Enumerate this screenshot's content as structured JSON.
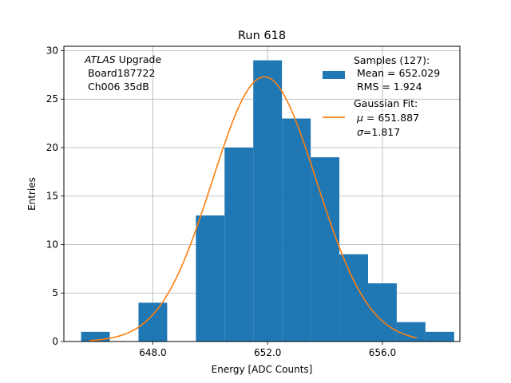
{
  "chart_data": {
    "type": "bar",
    "title": "Run 618",
    "xlabel": "Energy [ADC Counts]",
    "ylabel": "Entries",
    "xlim": [
      644.9,
      658.7
    ],
    "ylim": [
      0,
      30.45
    ],
    "x_ticks": [
      648.0,
      652.0,
      656.0
    ],
    "x_tick_labels": [
      "648.0",
      "652.0",
      "656.0"
    ],
    "y_ticks": [
      0,
      5,
      10,
      15,
      20,
      25,
      30
    ],
    "y_tick_labels": [
      "0",
      "5",
      "10",
      "15",
      "20",
      "25",
      "30"
    ],
    "grid": true,
    "bin_edges": [
      645.5,
      646.5,
      647.5,
      648.5,
      649.5,
      650.5,
      651.5,
      652.5,
      653.5,
      654.5,
      655.5,
      656.5,
      657.5,
      658.5
    ],
    "counts": [
      1,
      0,
      4,
      0,
      13,
      20,
      29,
      23,
      19,
      9,
      6,
      2,
      1
    ],
    "bar_color": "#1f77b4",
    "fit": {
      "type": "gaussian",
      "mu": 651.887,
      "sigma": 1.817,
      "amplitude": 27.3,
      "x_range": [
        645.8,
        657.2
      ],
      "color": "#ff7f0e"
    },
    "annotation": {
      "italic": "ATLAS",
      "line1_rest": " Upgrade",
      "line2": " Board187722",
      "line3": " Ch006 35dB"
    },
    "legend": {
      "position": "upper right",
      "samples": {
        "line1": "Samples (127):",
        "line2": " Mean = 652.029",
        "line3": " RMS = 1.924"
      },
      "fit": {
        "line1": "Gaussian Fit:",
        "line2_symbol": "μ",
        "line2_rest": " = 651.887",
        "line3_symbol": "σ",
        "line3_rest": "=1.817"
      }
    }
  }
}
